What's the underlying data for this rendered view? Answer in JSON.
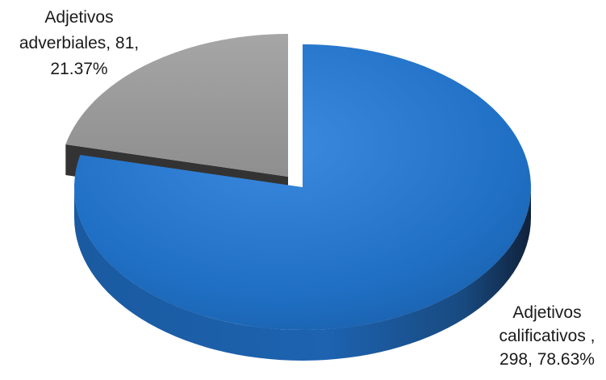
{
  "chart_data": {
    "type": "pie",
    "style": "3d-exploded",
    "legend": "none",
    "slices": [
      {
        "label_lines": [
          "Adjetivos",
          "calificativos ,",
          "298, 78.63%"
        ],
        "value": 298,
        "percent": 78.63,
        "color": "#1f6fc4",
        "exploded": false
      },
      {
        "label_lines": [
          "Adjetivos",
          "adverbiales, 81,",
          "21.37%"
        ],
        "value": 81,
        "percent": 21.37,
        "color": "#9c9c9c",
        "exploded": true
      }
    ]
  }
}
